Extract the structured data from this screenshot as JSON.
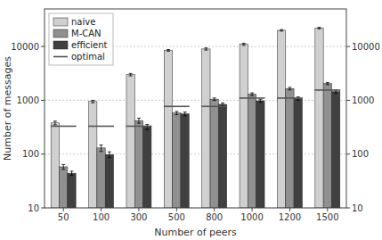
{
  "chart_data": {
    "type": "bar",
    "categories": [
      "50",
      "100",
      "300",
      "500",
      "800",
      "1000",
      "1200",
      "1500"
    ],
    "series": [
      {
        "name": "naive",
        "color": "#d0d0d0",
        "values": [
          380,
          950,
          3000,
          8500,
          9000,
          11000,
          20000,
          22000
        ],
        "errors": [
          30,
          50,
          150,
          300,
          400,
          500,
          600,
          700
        ]
      },
      {
        "name": "M-CAN",
        "color": "#909090",
        "values": [
          58,
          130,
          420,
          580,
          1050,
          1300,
          1650,
          2050
        ],
        "errors": [
          6,
          18,
          45,
          40,
          55,
          75,
          90,
          95
        ]
      },
      {
        "name": "efficient",
        "color": "#404040",
        "values": [
          44,
          98,
          320,
          560,
          840,
          980,
          1080,
          1450
        ],
        "errors": [
          4,
          12,
          35,
          45,
          55,
          65,
          75,
          90
        ]
      },
      {
        "name": "optimal",
        "type": "hline",
        "color": "#555555",
        "values": [
          330,
          330,
          330,
          770,
          770,
          1100,
          1100,
          1550
        ]
      }
    ],
    "xlabel": "Number of peers",
    "ylabel": "Number of messages",
    "log": "y",
    "ylim": [
      10,
      50000
    ],
    "yticks": [
      10,
      100,
      1000,
      10000
    ],
    "y2lim": [
      10,
      50000
    ],
    "y2ticks": [
      10,
      100,
      1000,
      10000
    ],
    "grid": true,
    "legend": "upper left"
  }
}
